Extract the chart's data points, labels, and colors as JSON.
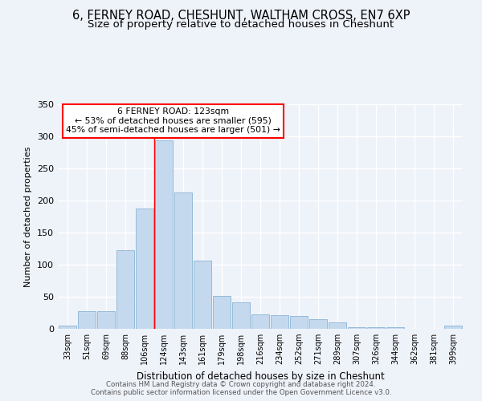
{
  "title1": "6, FERNEY ROAD, CHESHUNT, WALTHAM CROSS, EN7 6XP",
  "title2": "Size of property relative to detached houses in Cheshunt",
  "xlabel": "Distribution of detached houses by size in Cheshunt",
  "ylabel": "Number of detached properties",
  "categories": [
    "33sqm",
    "51sqm",
    "69sqm",
    "88sqm",
    "106sqm",
    "124sqm",
    "143sqm",
    "161sqm",
    "179sqm",
    "198sqm",
    "216sqm",
    "234sqm",
    "252sqm",
    "271sqm",
    "289sqm",
    "307sqm",
    "326sqm",
    "344sqm",
    "362sqm",
    "381sqm",
    "399sqm"
  ],
  "values": [
    5,
    28,
    28,
    122,
    188,
    294,
    212,
    106,
    51,
    41,
    22,
    21,
    20,
    15,
    10,
    3,
    3,
    3,
    0,
    0,
    5
  ],
  "bar_color": "#c5d9ee",
  "bar_edge_color": "#89b4d4",
  "red_line_index": 5,
  "annotation_title": "6 FERNEY ROAD: 123sqm",
  "annotation_line1": "← 53% of detached houses are smaller (595)",
  "annotation_line2": "45% of semi-detached houses are larger (501) →",
  "ylim": [
    0,
    350
  ],
  "yticks": [
    0,
    50,
    100,
    150,
    200,
    250,
    300,
    350
  ],
  "footer1": "Contains HM Land Registry data © Crown copyright and database right 2024.",
  "footer2": "Contains public sector information licensed under the Open Government Licence v3.0.",
  "background_color": "#eef2f9",
  "grid_color": "#ffffff",
  "title1_fontsize": 10.5,
  "title2_fontsize": 9.5
}
